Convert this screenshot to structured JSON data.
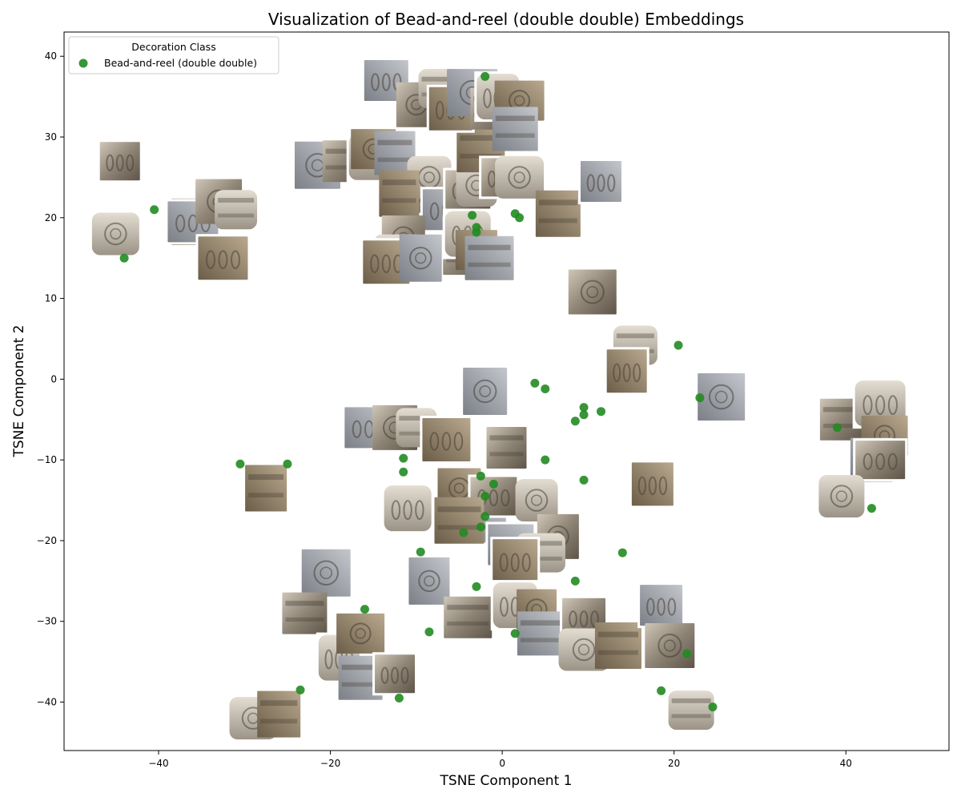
{
  "chart_data": {
    "type": "scatter",
    "title": "Visualization of Bead-and-reel (double double) Embeddings",
    "xlabel": "TSNE Component 1",
    "ylabel": "TSNE Component 2",
    "xlim": [
      -51,
      52
    ],
    "ylim": [
      -46,
      43
    ],
    "xticks": [
      -40,
      -20,
      0,
      20,
      40
    ],
    "yticks": [
      -40,
      -30,
      -20,
      -10,
      0,
      10,
      20,
      30,
      40
    ],
    "grid": false,
    "legend": {
      "title": "Decoration Class",
      "placement": "top-left",
      "entries": [
        "Bead-and-reel (double double)"
      ]
    },
    "series": [
      {
        "name": "Bead-and-reel (double double)",
        "color": "#228B22",
        "marker": "circle",
        "points": [
          [
            -44,
            15
          ],
          [
            -40.5,
            21
          ],
          [
            -30.5,
            -10.5
          ],
          [
            -25,
            -10.5
          ],
          [
            -16,
            -28.5
          ],
          [
            -23.5,
            -38.5
          ],
          [
            -12,
            -39.5
          ],
          [
            -8.5,
            -31.3
          ],
          [
            -9.5,
            -21.4
          ],
          [
            -11.5,
            -9.8
          ],
          [
            -11.5,
            -11.5
          ],
          [
            -3,
            -25.7
          ],
          [
            -2.5,
            -12
          ],
          [
            -2,
            -14.5
          ],
          [
            -2,
            -17
          ],
          [
            -2.5,
            -18.3
          ],
          [
            -4.5,
            -19
          ],
          [
            -1,
            -13
          ],
          [
            1.5,
            -31.5
          ],
          [
            1.5,
            20.5
          ],
          [
            2,
            20
          ],
          [
            -3.5,
            20.3
          ],
          [
            -3,
            18.8
          ],
          [
            -3,
            18.2
          ],
          [
            -2,
            37.5
          ],
          [
            3.8,
            -0.5
          ],
          [
            5,
            -1.2
          ],
          [
            5,
            -10
          ],
          [
            8.5,
            -5.2
          ],
          [
            9.5,
            -3.5
          ],
          [
            9.5,
            -4.4
          ],
          [
            11.5,
            -4
          ],
          [
            9.5,
            -12.5
          ],
          [
            8.5,
            -25
          ],
          [
            14,
            -21.5
          ],
          [
            18.5,
            -38.6
          ],
          [
            21.5,
            -34
          ],
          [
            24.5,
            -40.6
          ],
          [
            20.5,
            4.2
          ],
          [
            23,
            -2.3
          ],
          [
            39,
            -6
          ],
          [
            43,
            -16
          ]
        ]
      }
    ],
    "thumbnails": [
      [
        -44.5,
        27
      ],
      [
        -45,
        18
      ],
      [
        -36,
        19.5
      ],
      [
        -36,
        19.5
      ],
      [
        -33,
        22
      ],
      [
        -31,
        21
      ],
      [
        -32.5,
        15
      ],
      [
        -21.5,
        26.5
      ],
      [
        -18.5,
        27
      ],
      [
        -15,
        27.5
      ],
      [
        -15,
        28.5
      ],
      [
        -12.5,
        28
      ],
      [
        -8.5,
        23
      ],
      [
        -8.5,
        25
      ],
      [
        -12,
        23
      ],
      [
        -6.5,
        21
      ],
      [
        -11.5,
        17.5
      ],
      [
        -12,
        15.5
      ],
      [
        -13.5,
        14.5
      ],
      [
        -9.5,
        15
      ],
      [
        -4,
        15.5
      ],
      [
        -4,
        18
      ],
      [
        -3,
        16
      ],
      [
        -1.5,
        15
      ],
      [
        -4,
        23.5
      ],
      [
        -3,
        24
      ],
      [
        -2.5,
        28.5
      ],
      [
        -13.5,
        37
      ],
      [
        -10,
        34
      ],
      [
        -7,
        36
      ],
      [
        -6,
        33.5
      ],
      [
        -3.5,
        35.5
      ],
      [
        -1,
        33.5
      ],
      [
        -0.5,
        35
      ],
      [
        2,
        34.5
      ],
      [
        1.5,
        31
      ],
      [
        0,
        25
      ],
      [
        2,
        25
      ],
      [
        6.5,
        20.5
      ],
      [
        11.5,
        24.5
      ],
      [
        10.5,
        10.8
      ],
      [
        15.5,
        4.2
      ],
      [
        14.5,
        1
      ],
      [
        25.5,
        -2.2
      ],
      [
        39.5,
        -5
      ],
      [
        44,
        -3
      ],
      [
        44.5,
        -7
      ],
      [
        43,
        -10
      ],
      [
        44,
        -10
      ],
      [
        39.5,
        -14.5
      ],
      [
        -27.5,
        -13.5
      ],
      [
        -15.5,
        -6
      ],
      [
        -12.5,
        -6
      ],
      [
        -10,
        -6
      ],
      [
        -6.5,
        -7.5
      ],
      [
        -2,
        -1.5
      ],
      [
        0.5,
        -8.5
      ],
      [
        -11,
        -16
      ],
      [
        -5,
        -13.5
      ],
      [
        -2.5,
        -17.5
      ],
      [
        -1,
        -14.5
      ],
      [
        4,
        -15
      ],
      [
        -5,
        -17.5
      ],
      [
        1,
        -20.5
      ],
      [
        6.5,
        -19.5
      ],
      [
        4.5,
        -21.5
      ],
      [
        1.5,
        -22.5
      ],
      [
        -8.5,
        -25
      ],
      [
        -4,
        -29.5
      ],
      [
        1.5,
        -28
      ],
      [
        4,
        -28.5
      ],
      [
        4.5,
        -31.5
      ],
      [
        9.5,
        -29.5
      ],
      [
        9.5,
        -33.5
      ],
      [
        13.5,
        -33
      ],
      [
        18.5,
        -28
      ],
      [
        19.5,
        -33
      ],
      [
        22,
        -41
      ],
      [
        17.5,
        -13
      ],
      [
        -20.5,
        -24
      ],
      [
        -23,
        -29
      ],
      [
        -19,
        -34.5
      ],
      [
        -16.5,
        -31.5
      ],
      [
        -16.5,
        -37
      ],
      [
        -12.5,
        -36.5
      ],
      [
        -29,
        -42
      ],
      [
        -26,
        -41.5
      ]
    ]
  }
}
